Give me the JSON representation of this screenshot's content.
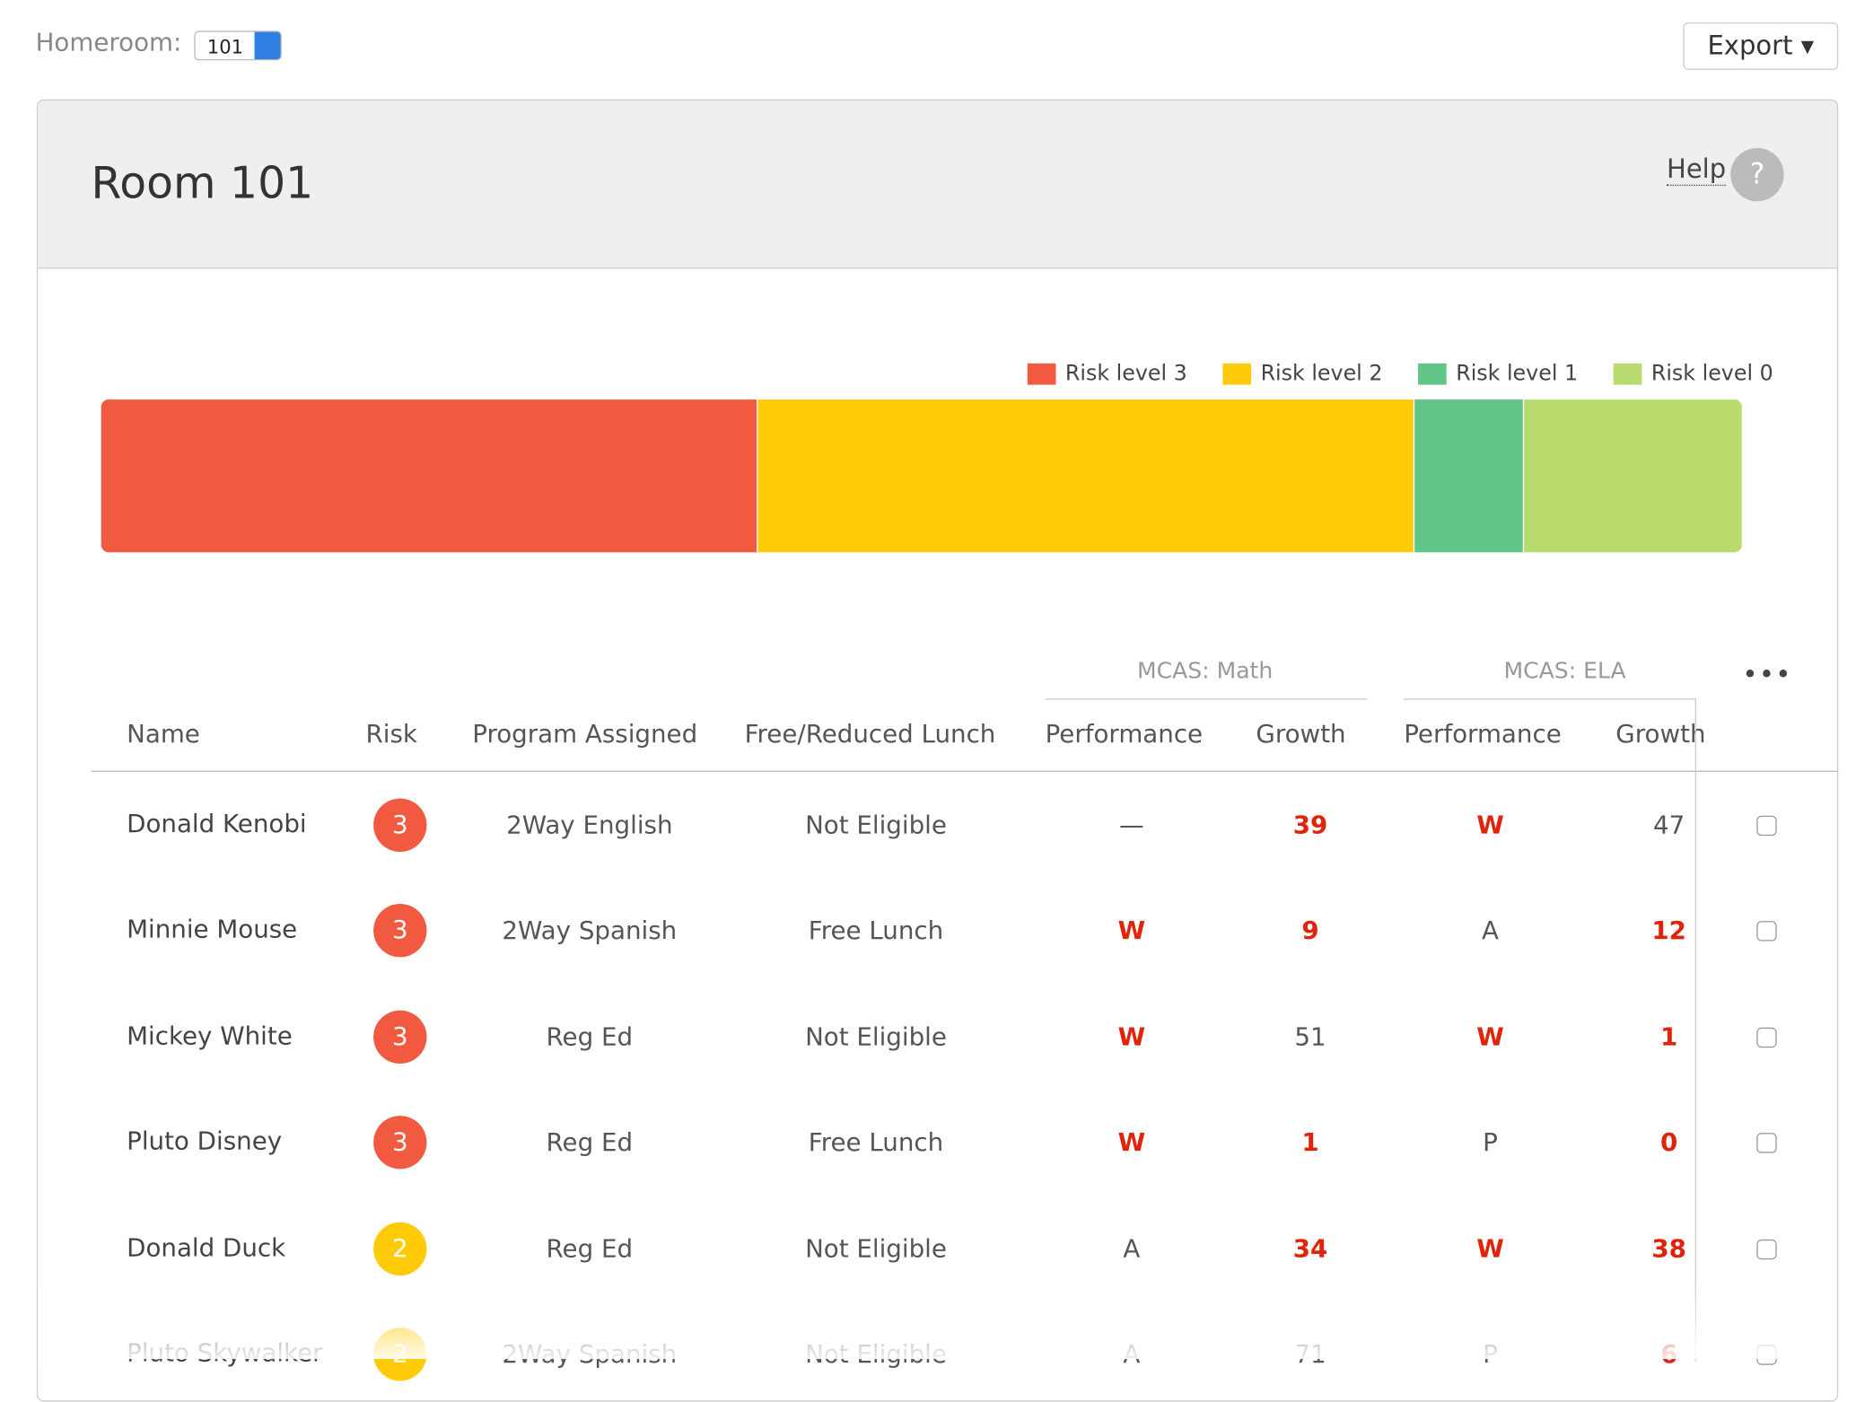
{
  "toolbar": {
    "homeroom_label": "Homeroom:",
    "homeroom_value": "101",
    "export": "Export"
  },
  "panel": {
    "title": "Room 101",
    "help": "Help",
    "help_icon": "?"
  },
  "chart_data": {
    "type": "stacked-bar",
    "categories": [
      null
    ],
    "series": [
      {
        "name": "Risk level 3",
        "color": "#f15a40",
        "values": [
          6
        ]
      },
      {
        "name": "Risk level 2",
        "color": "#ffcb08",
        "values": [
          6
        ]
      },
      {
        "name": "Risk level 1",
        "color": "#62c487",
        "values": [
          1
        ]
      },
      {
        "name": "Risk level 0",
        "color": "#b9da6c",
        "values": [
          2
        ]
      }
    ],
    "legend": "top-right"
  },
  "table": {
    "groups": [
      "MCAS: Math",
      "MCAS: ELA"
    ],
    "more": "•••",
    "columns": [
      "Name",
      "Risk",
      "Program Assigned",
      "Free/Reduced Lunch",
      "Performance",
      "Growth",
      "Performance",
      "Growth"
    ],
    "rows": [
      [
        "Donald Kenobi",
        "3",
        "2Way English",
        "Not Eligible",
        "—",
        "39",
        "W",
        "47"
      ],
      [
        "Minnie Mouse",
        "3",
        "2Way Spanish",
        "Free Lunch",
        "W",
        "9",
        "A",
        "12"
      ],
      [
        "Mickey White",
        "3",
        "Reg Ed",
        "Not Eligible",
        "W",
        "51",
        "W",
        "1"
      ],
      [
        "Pluto Disney",
        "3",
        "Reg Ed",
        "Free Lunch",
        "W",
        "1",
        "P",
        "0"
      ],
      [
        "Donald Duck",
        "2",
        "Reg Ed",
        "Not Eligible",
        "A",
        "34",
        "W",
        "38"
      ],
      [
        "Pluto Skywalker",
        "2",
        "2Way Spanish",
        "Not Eligible",
        "A",
        "71",
        "P",
        "6"
      ]
    ],
    "alerts": [
      [
        false,
        false,
        false,
        false,
        false,
        true,
        true,
        false
      ],
      [
        false,
        false,
        false,
        false,
        true,
        true,
        false,
        true
      ],
      [
        false,
        false,
        false,
        false,
        true,
        false,
        true,
        true
      ],
      [
        false,
        false,
        false,
        false,
        true,
        true,
        false,
        true
      ],
      [
        false,
        false,
        false,
        false,
        false,
        true,
        true,
        true
      ],
      [
        false,
        false,
        false,
        false,
        false,
        false,
        false,
        true
      ]
    ]
  }
}
